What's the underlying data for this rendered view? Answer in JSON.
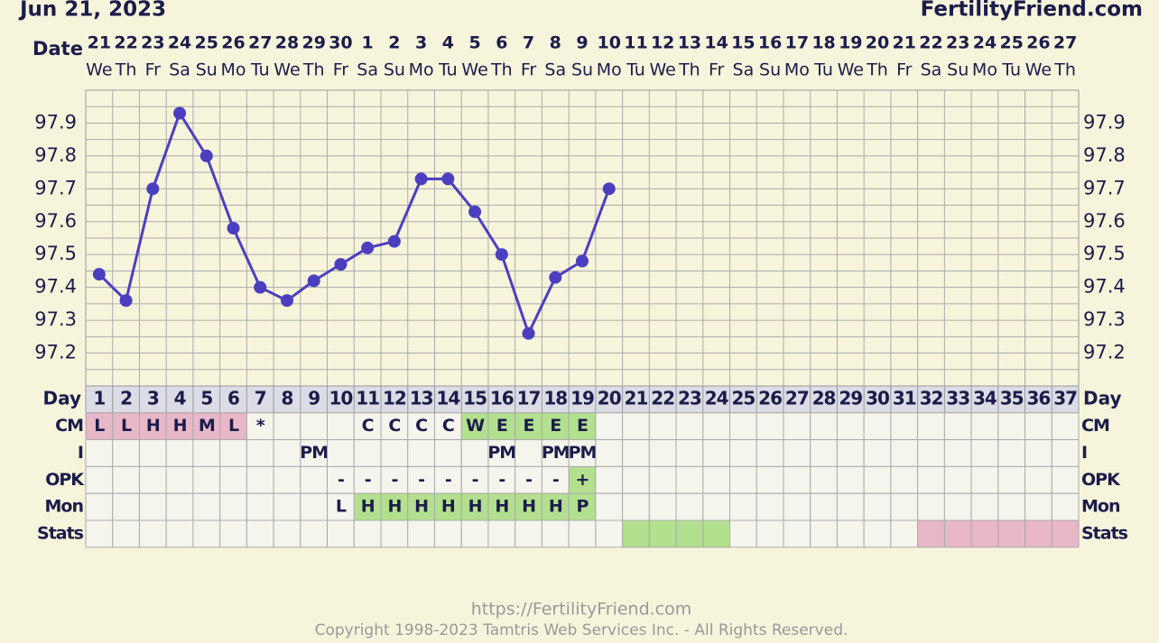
{
  "chart_data": {
    "type": "line",
    "title": "Jun 21, 2023",
    "brand": "FertilityFriend.com",
    "x_label": "Date",
    "dates": [
      21,
      22,
      23,
      24,
      25,
      26,
      27,
      28,
      29,
      30,
      1,
      2,
      3,
      4,
      5,
      6,
      7,
      8,
      9,
      10,
      11,
      12,
      13,
      14,
      15,
      16,
      17,
      18,
      19,
      20,
      21,
      22,
      23,
      24,
      25,
      26,
      27
    ],
    "weekdays": [
      "We",
      "Th",
      "Fr",
      "Sa",
      "Su",
      "Mo",
      "Tu",
      "We",
      "Th",
      "Fr",
      "Sa",
      "Su",
      "Mo",
      "Tu",
      "We",
      "Th",
      "Fr",
      "Sa",
      "Su",
      "Mo",
      "Tu",
      "We",
      "Th",
      "Fr",
      "Sa",
      "Su",
      "Mo",
      "Tu",
      "We",
      "Th",
      "Fr",
      "Sa",
      "Su",
      "Mo",
      "Tu",
      "We",
      "Th"
    ],
    "category_label": "Day",
    "categories": [
      1,
      2,
      3,
      4,
      5,
      6,
      7,
      8,
      9,
      10,
      11,
      12,
      13,
      14,
      15,
      16,
      17,
      18,
      19,
      20,
      21,
      22,
      23,
      24,
      25,
      26,
      27,
      28,
      29,
      30,
      31,
      32,
      33,
      34,
      35,
      36,
      37
    ],
    "values": [
      97.44,
      97.36,
      97.7,
      97.93,
      97.8,
      97.58,
      97.4,
      97.36,
      97.42,
      97.47,
      97.52,
      97.54,
      97.73,
      97.73,
      97.63,
      97.5,
      97.26,
      97.43,
      97.48,
      97.7,
      null,
      null,
      null,
      null,
      null,
      null,
      null,
      null,
      null,
      null,
      null,
      null,
      null,
      null,
      null,
      null,
      null
    ],
    "color": "#4b3fc0",
    "ylim": [
      97.1,
      98.0
    ],
    "yticks": [
      97.2,
      97.3,
      97.4,
      97.5,
      97.6,
      97.7,
      97.8,
      97.9
    ],
    "grid": true,
    "rows": [
      {
        "label": "CM",
        "cells": [
          "L",
          "L",
          "H",
          "H",
          "M",
          "L",
          "*",
          null,
          null,
          null,
          "C",
          "C",
          "C",
          "C",
          "W",
          "E",
          "E",
          "E",
          "E",
          null,
          null,
          null,
          null,
          null,
          null,
          null,
          null,
          null,
          null,
          null,
          null,
          null,
          null,
          null,
          null,
          null,
          null
        ],
        "fills": [
          "#e8b7c8",
          "#e8b7c8",
          "#e8b7c8",
          "#e8b7c8",
          "#e8b7c8",
          "#e8b7c8",
          null,
          null,
          null,
          null,
          null,
          null,
          null,
          null,
          "#b3e08e",
          "#b3e08e",
          "#b3e08e",
          "#b3e08e",
          "#b3e08e",
          null,
          null,
          null,
          null,
          null,
          null,
          null,
          null,
          null,
          null,
          null,
          null,
          null,
          null,
          null,
          null,
          null,
          null
        ]
      },
      {
        "label": "I",
        "cells": [
          null,
          null,
          null,
          null,
          null,
          null,
          null,
          null,
          "PM",
          null,
          null,
          null,
          null,
          null,
          null,
          "PM",
          null,
          "PM",
          "PM",
          null,
          null,
          null,
          null,
          null,
          null,
          null,
          null,
          null,
          null,
          null,
          null,
          null,
          null,
          null,
          null,
          null,
          null
        ]
      },
      {
        "label": "OPK",
        "cells": [
          null,
          null,
          null,
          null,
          null,
          null,
          null,
          null,
          null,
          "-",
          "-",
          "-",
          "-",
          "-",
          "-",
          "-",
          "-",
          "-",
          "+",
          null,
          null,
          null,
          null,
          null,
          null,
          null,
          null,
          null,
          null,
          null,
          null,
          null,
          null,
          null,
          null,
          null,
          null
        ],
        "fills": [
          null,
          null,
          null,
          null,
          null,
          null,
          null,
          null,
          null,
          null,
          null,
          null,
          null,
          null,
          null,
          null,
          null,
          null,
          "#b3e08e",
          null,
          null,
          null,
          null,
          null,
          null,
          null,
          null,
          null,
          null,
          null,
          null,
          null,
          null,
          null,
          null,
          null,
          null
        ]
      },
      {
        "label": "Mon",
        "cells": [
          null,
          null,
          null,
          null,
          null,
          null,
          null,
          null,
          null,
          "L",
          "H",
          "H",
          "H",
          "H",
          "H",
          "H",
          "H",
          "H",
          "P",
          null,
          null,
          null,
          null,
          null,
          null,
          null,
          null,
          null,
          null,
          null,
          null,
          null,
          null,
          null,
          null,
          null,
          null
        ],
        "fills": [
          null,
          null,
          null,
          null,
          null,
          null,
          null,
          null,
          null,
          null,
          "#b3e08e",
          "#b3e08e",
          "#b3e08e",
          "#b3e08e",
          "#b3e08e",
          "#b3e08e",
          "#b3e08e",
          "#b3e08e",
          "#b3e08e",
          null,
          null,
          null,
          null,
          null,
          null,
          null,
          null,
          null,
          null,
          null,
          null,
          null,
          null,
          null,
          null,
          null,
          null
        ]
      },
      {
        "label": "Stats",
        "fills": [
          null,
          null,
          null,
          null,
          null,
          null,
          null,
          null,
          null,
          null,
          null,
          null,
          null,
          null,
          null,
          null,
          null,
          null,
          null,
          null,
          "#b3e08e",
          "#b3e08e",
          "#b3e08e",
          "#b3e08e",
          null,
          null,
          null,
          null,
          null,
          null,
          null,
          "#e8b7c8",
          "#e8b7c8",
          "#e8b7c8",
          "#e8b7c8",
          "#e8b7c8",
          "#e8b7c8"
        ]
      }
    ],
    "footer_url": "https://FertilityFriend.com",
    "copyright": "Copyright 1998-2023 Tamtris Web Services Inc. - All Rights Reserved."
  }
}
